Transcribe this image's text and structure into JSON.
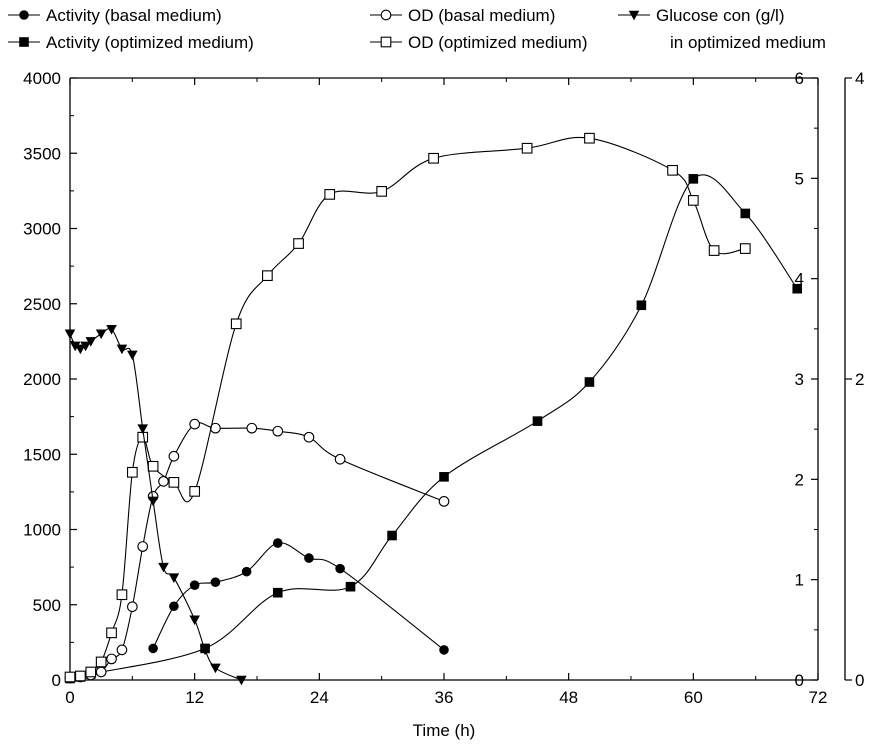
{
  "chart_data": {
    "type": "line",
    "xlabel": "Time (h)",
    "x_ticks": [
      "0",
      "12",
      "24",
      "36",
      "48",
      "60",
      "72"
    ],
    "xlim": [
      0,
      72
    ],
    "y_left": {
      "lim": [
        0,
        4000
      ],
      "ticks": [
        "0",
        "500",
        "1000",
        "1500",
        "2000",
        "2500",
        "3000",
        "3500",
        "4000"
      ]
    },
    "y_right_inner": {
      "lim": [
        0,
        6
      ],
      "ticks": [
        "0",
        "1",
        "2",
        "3",
        "4",
        "5",
        "6"
      ]
    },
    "y_right_outer": {
      "lim": [
        0,
        4
      ],
      "ticks": [
        "0",
        "2",
        "4"
      ]
    },
    "grid": false,
    "legend": {
      "placement": "top",
      "entries": [
        {
          "key": "act_basal",
          "text": "Activity (basal medium)"
        },
        {
          "key": "act_opt",
          "text": "Activity (optimized medium)"
        },
        {
          "key": "od_basal",
          "text": "OD (basal medium)"
        },
        {
          "key": "od_opt",
          "text": "OD (optimized medium)"
        },
        {
          "key": "glucose",
          "text": "Glucose con (g/l)",
          "text2": "in optimized medium"
        }
      ]
    },
    "series": [
      {
        "key": "act_basal",
        "name": "Activity (basal medium)",
        "axis": "left",
        "marker": "filled-circle",
        "x": [
          8,
          10,
          12,
          14,
          17,
          20,
          23,
          26,
          36
        ],
        "y": [
          210,
          490,
          630,
          650,
          720,
          910,
          810,
          740,
          200
        ]
      },
      {
        "key": "act_opt",
        "name": "Activity (optimized medium)",
        "axis": "left",
        "marker": "filled-square",
        "x": [
          0,
          1,
          2,
          13,
          20,
          27,
          31,
          36,
          45,
          50,
          55,
          60,
          65,
          70
        ],
        "y": [
          10,
          20,
          40,
          210,
          580,
          620,
          960,
          1350,
          1720,
          1980,
          2490,
          3330,
          3100,
          2600
        ]
      },
      {
        "key": "od_basal",
        "name": "OD (basal medium)",
        "axis": "right_inner",
        "marker": "open-circle",
        "x": [
          0,
          1,
          2,
          3,
          4,
          5,
          6,
          7,
          8,
          9,
          10,
          12,
          14,
          17.5,
          20,
          23,
          26,
          36
        ],
        "y": [
          0.02,
          0.03,
          0.05,
          0.08,
          0.21,
          0.3,
          0.73,
          1.33,
          1.83,
          1.98,
          2.23,
          2.55,
          2.51,
          2.51,
          2.48,
          2.42,
          2.2,
          1.78
        ]
      },
      {
        "key": "od_opt",
        "name": "OD (optimized medium)",
        "axis": "right_inner",
        "marker": "open-square",
        "x": [
          0,
          1,
          2,
          3,
          4,
          5,
          6,
          7,
          8,
          10,
          12,
          16,
          19,
          22,
          25,
          30,
          35,
          44,
          50,
          58,
          60,
          62,
          65
        ],
        "y": [
          0.03,
          0.04,
          0.08,
          0.18,
          0.47,
          0.85,
          2.07,
          2.42,
          2.13,
          1.97,
          1.88,
          3.55,
          4.03,
          4.35,
          4.84,
          4.87,
          5.2,
          5.3,
          5.4,
          5.08,
          4.78,
          4.28,
          4.3
        ]
      },
      {
        "key": "glucose",
        "name": "Glucose con (g/l) in optimized medium",
        "axis": "right_outer",
        "marker": "filled-triangle-down",
        "x": [
          0,
          0.5,
          1,
          1.5,
          2,
          3,
          4,
          5,
          6,
          7,
          8,
          9,
          10,
          12,
          13,
          14,
          16.5
        ],
        "y": [
          2.3,
          2.22,
          2.2,
          2.22,
          2.25,
          2.3,
          2.33,
          2.2,
          2.16,
          1.67,
          1.19,
          0.75,
          0.68,
          0.4,
          0.2,
          0.08,
          0
        ]
      }
    ]
  }
}
